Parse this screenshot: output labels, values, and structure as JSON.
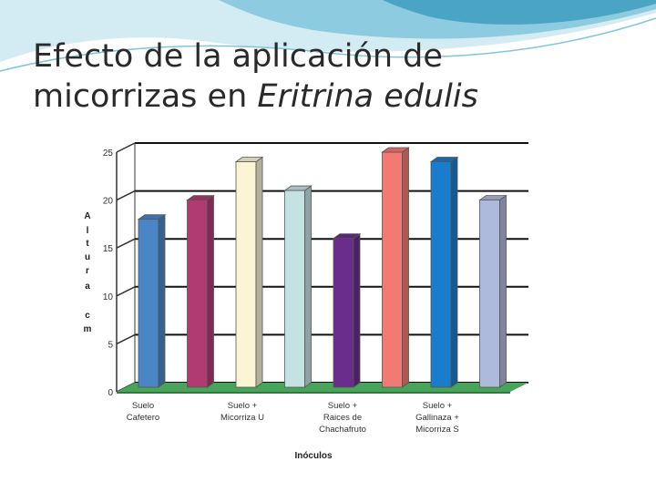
{
  "slide": {
    "title_line1": "Efecto de la aplicación de",
    "title_line2_normal": "micorrizas en ",
    "title_line2_italic": "Eritrina edulis"
  },
  "colors": {
    "banner_light": "#d3ecf3",
    "banner_mid": "#7fc6dc",
    "banner_dark": "#3a9bbd",
    "floor": "#4aa35a",
    "grid": "#111111"
  },
  "chart_data": {
    "type": "bar",
    "title": "",
    "xlabel": "Inóculos",
    "ylabel": "A l t u r a  c m",
    "ylabel_letters": [
      "A",
      "l",
      "t",
      "u",
      "r",
      "a",
      "",
      "c",
      "m"
    ],
    "ylim": [
      0,
      25
    ],
    "yticks": [
      0,
      5,
      10,
      15,
      20,
      25
    ],
    "grid": true,
    "category_labels": [
      [
        "Suelo",
        "Cafetero"
      ],
      [
        "Suelo +",
        "Micorriza U"
      ],
      [
        "Suelo +",
        "Raices de",
        "Chachafruto"
      ],
      [
        "Suelo +",
        "Gallinaza +",
        "Micorriza S"
      ]
    ],
    "values": [
      18,
      20,
      24,
      21,
      16,
      25,
      24,
      20
    ],
    "bar_colors": [
      "#4a86c6",
      "#b03a72",
      "#fbf5d4",
      "#c4e2e4",
      "#6a2d8c",
      "#f17a72",
      "#1a7ccc",
      "#aebadc"
    ]
  }
}
